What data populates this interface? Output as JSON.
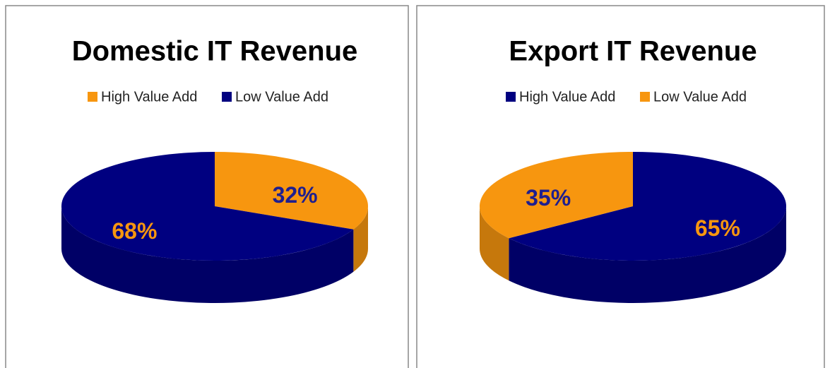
{
  "chart_data": [
    {
      "type": "pie",
      "title": "Domestic IT Revenue",
      "categories": [
        "High Value Add",
        "Low Value Add"
      ],
      "values": [
        32,
        68
      ],
      "value_labels": [
        "32%",
        "68%"
      ],
      "colors": [
        "#f7960f",
        "#000080"
      ],
      "label_colors": [
        "#1f1f8f",
        "#f7960f"
      ],
      "legend": "top",
      "three_d": true
    },
    {
      "type": "pie",
      "title": "Export IT Revenue",
      "categories": [
        "High Value Add",
        "Low Value Add"
      ],
      "values": [
        65,
        35
      ],
      "value_labels": [
        "65%",
        "35%"
      ],
      "colors": [
        "#000080",
        "#f7960f"
      ],
      "label_colors": [
        "#f7960f",
        "#1f1f8f"
      ],
      "legend": "top",
      "three_d": true
    }
  ]
}
